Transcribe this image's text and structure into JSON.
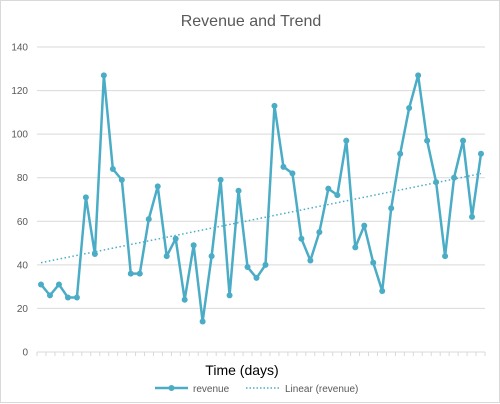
{
  "chart_data": {
    "type": "line",
    "title": "Revenue and Trend",
    "xlabel": "Time (days)",
    "ylabel": "",
    "ylim": [
      0,
      140
    ],
    "y_ticks": [
      0,
      20,
      40,
      60,
      80,
      100,
      120,
      140
    ],
    "x_tick_labels": "none",
    "grid": "horizontal",
    "legend_position": "bottom",
    "series": [
      {
        "name": "revenue",
        "color": "#4bacc6",
        "marker": "circle",
        "values": [
          31,
          26,
          31,
          25,
          25,
          71,
          45,
          127,
          84,
          79,
          36,
          36,
          61,
          76,
          44,
          52,
          24,
          49,
          14,
          44,
          79,
          26,
          74,
          39,
          34,
          40,
          113,
          85,
          82,
          52,
          42,
          55,
          75,
          72,
          97,
          48,
          58,
          41,
          28,
          66,
          91,
          112,
          127,
          97,
          78,
          44,
          80,
          97,
          62,
          91
        ]
      },
      {
        "name": "Linear (revenue)",
        "color": "#4bacc6",
        "style": "dotted",
        "trendline_of": "revenue",
        "values": [
          41.0,
          81.9
        ]
      }
    ]
  }
}
